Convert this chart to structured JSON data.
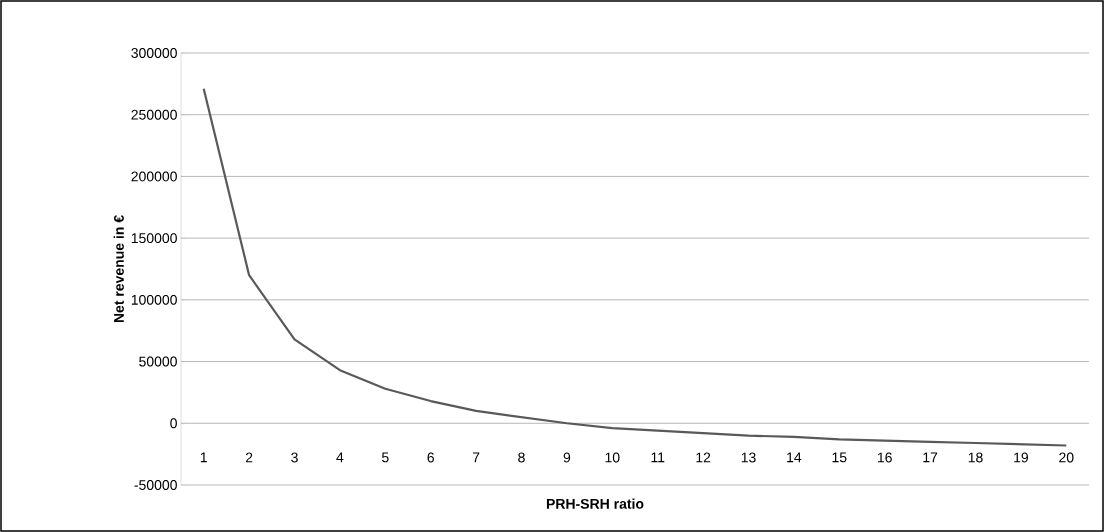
{
  "chart_data": {
    "type": "line",
    "xlabel": "PRH-SRH ratio",
    "ylabel": "Net revenue in €",
    "categories": [
      "1",
      "2",
      "3",
      "4",
      "5",
      "6",
      "7",
      "8",
      "9",
      "10",
      "11",
      "12",
      "13",
      "14",
      "15",
      "16",
      "17",
      "18",
      "19",
      "20"
    ],
    "series": [
      {
        "color": "#595959",
        "values": [
          271000,
          120000,
          68000,
          43000,
          28000,
          18000,
          10000,
          5000,
          0,
          -4000,
          -6000,
          -8000,
          -10000,
          -11000,
          -13000,
          -14000,
          -15000,
          -16000,
          -17000,
          -18000
        ]
      }
    ],
    "ylim": [
      -50000,
      300000
    ],
    "yticks": [
      -50000,
      0,
      50000,
      100000,
      150000,
      200000,
      250000,
      300000
    ],
    "grid": "y",
    "marker": "none",
    "line_style": "solid"
  }
}
